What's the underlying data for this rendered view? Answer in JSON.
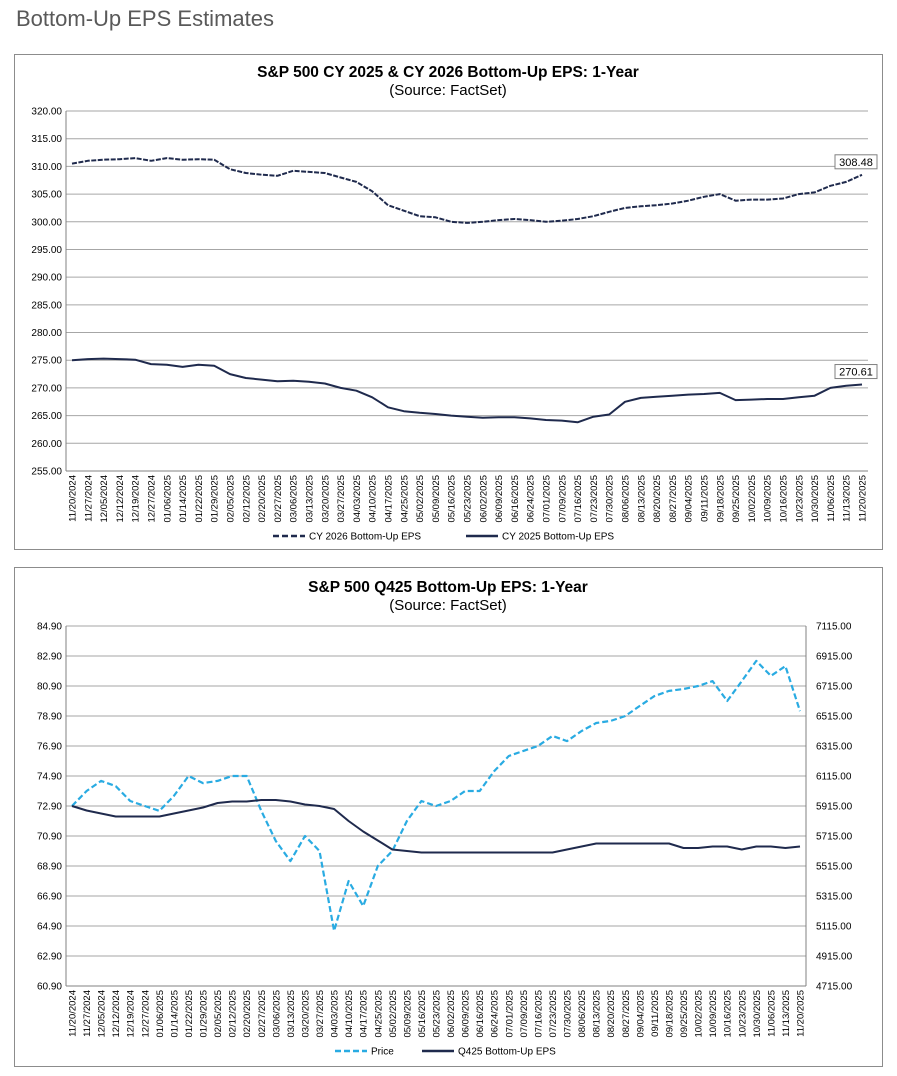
{
  "page": {
    "title": "Bottom-Up EPS Estimates"
  },
  "chart_data": [
    {
      "type": "line",
      "title": "S&P 500 CY 2025 & CY 2026 Bottom-Up  EPS: 1-Year",
      "subtitle": "(Source: FactSet)",
      "xlabel": "",
      "ylabel": "",
      "ylim": [
        255,
        320
      ],
      "yticks": [
        "255.00",
        "260.00",
        "265.00",
        "270.00",
        "275.00",
        "280.00",
        "285.00",
        "290.00",
        "295.00",
        "300.00",
        "305.00",
        "310.00",
        "315.00",
        "320.00"
      ],
      "grid": true,
      "legend": "bottom",
      "x": [
        "11/20/2024",
        "11/27/2024",
        "12/05/2024",
        "12/12/2024",
        "12/19/2024",
        "12/27/2024",
        "01/06/2025",
        "01/14/2025",
        "01/22/2025",
        "01/29/2025",
        "02/05/2025",
        "02/12/2025",
        "02/20/2025",
        "02/27/2025",
        "03/06/2025",
        "03/13/2025",
        "03/20/2025",
        "03/27/2025",
        "04/03/2025",
        "04/10/2025",
        "04/17/2025",
        "04/25/2025",
        "05/02/2025",
        "05/09/2025",
        "05/16/2025",
        "05/23/2025",
        "06/02/2025",
        "06/09/2025",
        "06/16/2025",
        "06/24/2025",
        "07/01/2025",
        "07/09/2025",
        "07/16/2025",
        "07/23/2025",
        "07/30/2025",
        "08/06/2025",
        "08/13/2025",
        "08/20/2025",
        "08/27/2025",
        "09/04/2025",
        "09/11/2025",
        "09/18/2025",
        "09/25/2025",
        "10/02/2025",
        "10/09/2025",
        "10/16/2025",
        "10/23/2025",
        "10/30/2025",
        "11/06/2025",
        "11/13/2025",
        "11/20/2025"
      ],
      "series": [
        {
          "name": "CY 2026 Bottom-Up EPS",
          "color": "#1f2a4d",
          "dashed": true,
          "end_label": "308.48",
          "values": [
            310.5,
            311,
            311.2,
            311.3,
            311.5,
            311,
            311.5,
            311.2,
            311.3,
            311.2,
            309.5,
            308.8,
            308.5,
            308.3,
            309.2,
            309,
            308.8,
            308,
            307.2,
            305.5,
            303,
            302,
            301,
            300.8,
            300,
            299.8,
            300,
            300.3,
            300.5,
            300.3,
            300,
            300.2,
            300.5,
            301,
            301.8,
            302.5,
            302.8,
            303,
            303.3,
            303.8,
            304.5,
            305,
            303.8,
            304,
            304,
            304.2,
            305,
            305.3,
            306.5,
            307.2,
            308.48
          ]
        },
        {
          "name": "CY 2025 Bottom-Up EPS",
          "color": "#1f2a4d",
          "dashed": false,
          "end_label": "270.61",
          "values": [
            275,
            275.2,
            275.3,
            275.2,
            275.1,
            274.3,
            274.2,
            273.8,
            274.2,
            274,
            272.5,
            271.8,
            271.5,
            271.2,
            271.3,
            271.1,
            270.8,
            270,
            269.5,
            268.3,
            266.5,
            265.8,
            265.5,
            265.3,
            265,
            264.8,
            264.6,
            264.7,
            264.7,
            264.5,
            264.2,
            264.1,
            263.8,
            264.8,
            265.2,
            267.5,
            268.2,
            268.4,
            268.6,
            268.8,
            268.9,
            269.1,
            267.8,
            267.9,
            268,
            268,
            268.3,
            268.6,
            270,
            270.4,
            270.61
          ]
        }
      ]
    },
    {
      "type": "line",
      "title": "S&P 500 Q425 Bottom-Up EPS: 1-Year",
      "subtitle": "(Source: FactSet)",
      "xlabel": "",
      "ylabel": "",
      "y2label": "",
      "ylim": [
        60.9,
        84.9
      ],
      "y2lim": [
        4715,
        7115
      ],
      "yticks": [
        "60.90",
        "62.90",
        "64.90",
        "66.90",
        "68.90",
        "70.90",
        "72.90",
        "74.90",
        "76.90",
        "78.90",
        "80.90",
        "82.90",
        "84.90"
      ],
      "y2ticks": [
        "4715.00",
        "4915.00",
        "5115.00",
        "5315.00",
        "5515.00",
        "5715.00",
        "5915.00",
        "6115.00",
        "6315.00",
        "6515.00",
        "6715.00",
        "6915.00",
        "7115.00"
      ],
      "grid": true,
      "legend": "bottom",
      "x": [
        "11/20/2024",
        "11/27/2024",
        "12/05/2024",
        "12/12/2024",
        "12/19/2024",
        "12/27/2024",
        "01/06/2025",
        "01/14/2025",
        "01/22/2025",
        "01/29/2025",
        "02/05/2025",
        "02/12/2025",
        "02/20/2025",
        "02/27/2025",
        "03/06/2025",
        "03/13/2025",
        "03/20/2025",
        "03/27/2025",
        "04/03/2025",
        "04/10/2025",
        "04/17/2025",
        "04/25/2025",
        "05/02/2025",
        "05/09/2025",
        "05/16/2025",
        "05/23/2025",
        "06/02/2025",
        "06/09/2025",
        "06/16/2025",
        "06/24/2025",
        "07/01/2025",
        "07/09/2025",
        "07/16/2025",
        "07/23/2025",
        "07/30/2025",
        "08/06/2025",
        "08/13/2025",
        "08/20/2025",
        "08/27/2025",
        "09/04/2025",
        "09/11/2025",
        "09/18/2025",
        "09/25/2025",
        "10/02/2025",
        "10/09/2025",
        "10/16/2025",
        "10/23/2025",
        "10/30/2025",
        "11/06/2025",
        "11/13/2025",
        "11/20/2025"
      ],
      "series": [
        {
          "name": "Price",
          "axis": "right",
          "color": "#29abe2",
          "dashed": true,
          "values": [
            5915,
            6015,
            6082,
            6048,
            5948,
            5915,
            5882,
            5982,
            6115,
            6068,
            6082,
            6115,
            6115,
            5882,
            5682,
            5548,
            5715,
            5615,
            5082,
            5415,
            5248,
            5515,
            5615,
            5815,
            5948,
            5915,
            5948,
            6015,
            6015,
            6148,
            6248,
            6282,
            6315,
            6382,
            6348,
            6415,
            6468,
            6482,
            6515,
            6582,
            6648,
            6682,
            6695,
            6715,
            6748,
            6615,
            6748,
            6882,
            6782,
            6848,
            6548
          ]
        },
        {
          "name": "Q425 Bottom-Up EPS",
          "axis": "left",
          "color": "#1f2a4d",
          "dashed": false,
          "values": [
            72.9,
            72.6,
            72.4,
            72.2,
            72.2,
            72.2,
            72.2,
            72.4,
            72.6,
            72.8,
            73.1,
            73.2,
            73.2,
            73.3,
            73.3,
            73.2,
            73.0,
            72.9,
            72.7,
            71.9,
            71.2,
            70.6,
            70.0,
            69.9,
            69.8,
            69.8,
            69.8,
            69.8,
            69.8,
            69.8,
            69.8,
            69.8,
            69.8,
            69.8,
            70.0,
            70.2,
            70.4,
            70.4,
            70.4,
            70.4,
            70.4,
            70.4,
            70.1,
            70.1,
            70.2,
            70.2,
            70.0,
            70.2,
            70.2,
            70.1,
            70.2
          ]
        }
      ]
    }
  ]
}
